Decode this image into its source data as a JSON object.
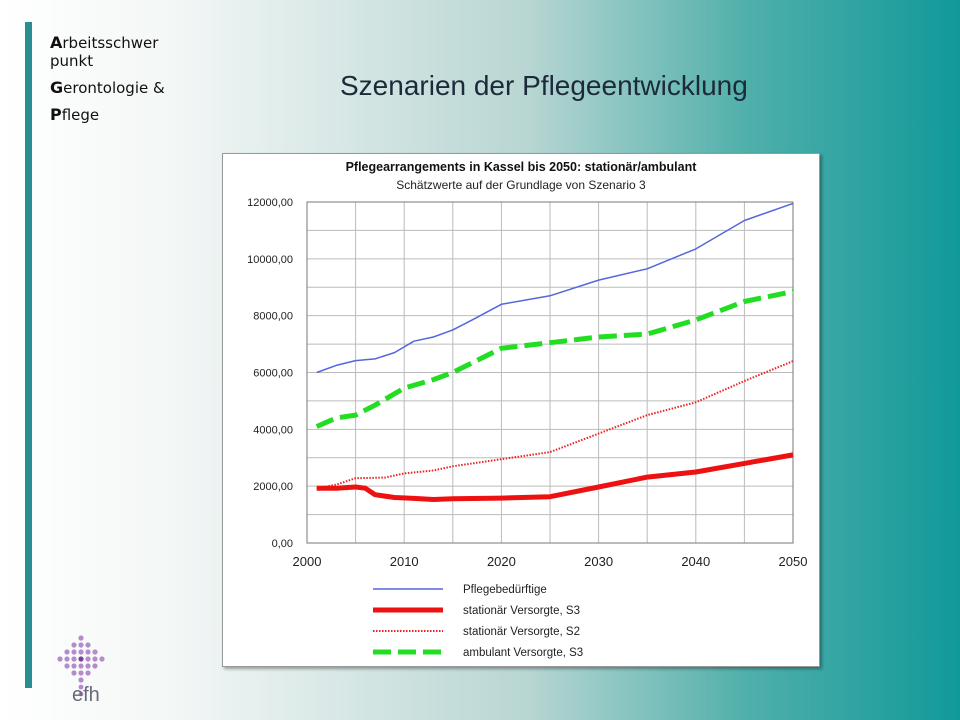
{
  "header": {
    "brand_line1_cap": "A",
    "brand_line1_rest": "rbeitsschwer",
    "brand_line2": "punkt",
    "brand_line3_cap": "G",
    "brand_line3_rest": "erontologie &",
    "brand_line4_cap": "P",
    "brand_line4_rest": "flege",
    "slide_title": "Szenarien der  Pflegeentwicklung"
  },
  "logo": {
    "text": "efh"
  },
  "colors": {
    "pflegebeduerftige": "#5566dd",
    "stationaer_s3": "#ee1111",
    "stationaer_s2": "#ee2222",
    "ambulant_s3": "#22dd22",
    "accent_bar": "#2a8d92"
  },
  "chart_data": {
    "type": "line",
    "title": "Pflegearrangements in Kassel bis 2050: stationär/ambulant",
    "subtitle": "Schätzwerte auf der Grundlage von Szenario 3",
    "xlabel": "",
    "ylabel": "",
    "xlim": [
      2000,
      2050
    ],
    "ylim": [
      0,
      12000
    ],
    "xticks": [
      "2000",
      "2010",
      "2020",
      "2030",
      "2040",
      "2050"
    ],
    "yticks": [
      "0,00",
      "2000,00",
      "4000,00",
      "6000,00",
      "8000,00",
      "10000,00",
      "12000,00"
    ],
    "grid": true,
    "legend_position": "bottom",
    "series": [
      {
        "name": "Pflegebedürftige",
        "style": "thin-solid",
        "points": [
          [
            2001,
            6000
          ],
          [
            2003,
            6250
          ],
          [
            2005,
            6420
          ],
          [
            2007,
            6480
          ],
          [
            2009,
            6700
          ],
          [
            2011,
            7100
          ],
          [
            2013,
            7250
          ],
          [
            2015,
            7500
          ],
          [
            2017,
            7850
          ],
          [
            2020,
            8400
          ],
          [
            2025,
            8700
          ],
          [
            2030,
            9250
          ],
          [
            2035,
            9650
          ],
          [
            2040,
            10350
          ],
          [
            2045,
            11350
          ],
          [
            2050,
            11950
          ]
        ]
      },
      {
        "name": "stationär Versorgte, S3",
        "style": "thick-solid",
        "points": [
          [
            2001,
            1930
          ],
          [
            2003,
            1930
          ],
          [
            2005,
            1970
          ],
          [
            2006,
            1930
          ],
          [
            2007,
            1700
          ],
          [
            2009,
            1600
          ],
          [
            2011,
            1570
          ],
          [
            2013,
            1530
          ],
          [
            2015,
            1560
          ],
          [
            2020,
            1580
          ],
          [
            2025,
            1630
          ],
          [
            2030,
            1970
          ],
          [
            2035,
            2320
          ],
          [
            2040,
            2500
          ],
          [
            2045,
            2800
          ],
          [
            2050,
            3100
          ]
        ]
      },
      {
        "name": "stationär Versorgte, S2",
        "style": "dotted",
        "points": [
          [
            2001,
            1930
          ],
          [
            2003,
            2050
          ],
          [
            2005,
            2280
          ],
          [
            2008,
            2300
          ],
          [
            2010,
            2450
          ],
          [
            2013,
            2550
          ],
          [
            2015,
            2700
          ],
          [
            2020,
            2950
          ],
          [
            2025,
            3200
          ],
          [
            2030,
            3850
          ],
          [
            2035,
            4500
          ],
          [
            2040,
            4950
          ],
          [
            2045,
            5700
          ],
          [
            2050,
            6400
          ]
        ]
      },
      {
        "name": "ambulant Versorgte, S3",
        "style": "thick-dashed",
        "points": [
          [
            2001,
            4100
          ],
          [
            2003,
            4400
          ],
          [
            2005,
            4500
          ],
          [
            2007,
            4850
          ],
          [
            2010,
            5450
          ],
          [
            2013,
            5750
          ],
          [
            2015,
            6000
          ],
          [
            2020,
            6850
          ],
          [
            2025,
            7050
          ],
          [
            2030,
            7250
          ],
          [
            2035,
            7350
          ],
          [
            2040,
            7850
          ],
          [
            2045,
            8500
          ],
          [
            2050,
            8850
          ]
        ]
      }
    ]
  }
}
